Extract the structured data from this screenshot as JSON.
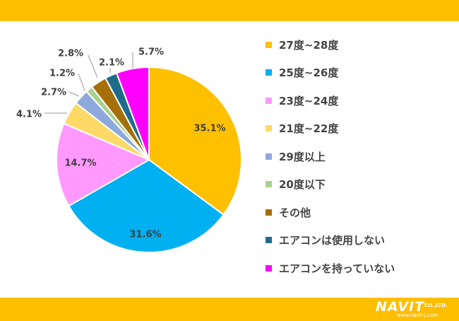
{
  "chart_data": {
    "type": "pie",
    "slices": [
      {
        "label": "27度~28度",
        "value": 35.1,
        "value_label": "35.1%",
        "color": "#FFC000"
      },
      {
        "label": "25度~26度",
        "value": 31.6,
        "value_label": "31.6%",
        "color": "#00B0F0"
      },
      {
        "label": "23度~24度",
        "value": 14.7,
        "value_label": "14.7%",
        "color": "#FF99FF"
      },
      {
        "label": "21度~22度",
        "value": 4.1,
        "value_label": "4.1%",
        "color": "#FFD966"
      },
      {
        "label": "29度以上",
        "value": 2.7,
        "value_label": "2.7%",
        "color": "#8EA9DB"
      },
      {
        "label": "20度以下",
        "value": 1.2,
        "value_label": "1.2%",
        "color": "#A9D08E"
      },
      {
        "label": "その他",
        "value": 2.8,
        "value_label": "2.8%",
        "color": "#A5700A"
      },
      {
        "label": "エアコンは使用しない",
        "value": 2.1,
        "value_label": "2.1%",
        "color": "#1F6C8A"
      },
      {
        "label": "エアコンを持っていない",
        "value": 5.7,
        "value_label": "5.7%",
        "color": "#FF00FF"
      }
    ],
    "legend_position": "right"
  },
  "brand": {
    "name": "NAVIT",
    "suffix": "CO.,LTD.",
    "url": "www.navit-j.com",
    "band_color": "#FFBE00"
  }
}
